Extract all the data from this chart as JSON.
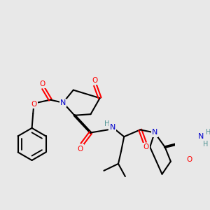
{
  "background_color": "#e8e8e8",
  "atom_colors": {
    "O": "#ff0000",
    "N": "#0000cc",
    "C": "#000000",
    "H": "#4a9090"
  },
  "bond_color": "#000000",
  "line_width": 1.5,
  "figsize": [
    3.0,
    3.0
  ],
  "dpi": 100
}
